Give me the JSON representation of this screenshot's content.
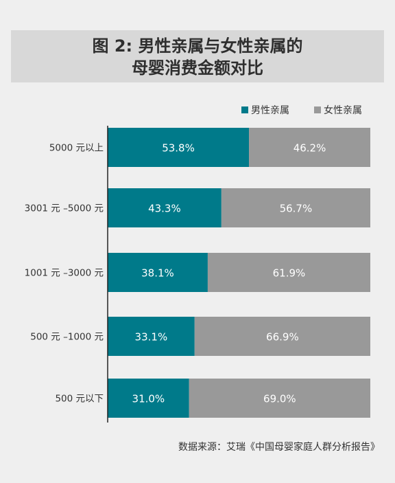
{
  "title_line_1": "图 2: 男性亲属与女性亲属的",
  "title_line_2": "母婴消费金额对比",
  "legend": [
    {
      "label": "男性亲属",
      "color": "#007a8a"
    },
    {
      "label": "女性亲属",
      "color": "#999999"
    }
  ],
  "source": "数据来源：艾瑞《中国母婴家庭人群分析报告》",
  "chart_data": {
    "type": "bar",
    "stacked": true,
    "orientation": "horizontal",
    "value_unit": "%",
    "categories": [
      "5000 元以上",
      "3001 元 –5000 元",
      "1001 元 –3000 元",
      "500 元 –1000 元",
      "500 元以下"
    ],
    "series": [
      {
        "name": "男性亲属",
        "color": "#007a8a",
        "values": [
          53.8,
          43.3,
          38.1,
          33.1,
          31.0
        ],
        "labels": [
          "53.8%",
          "43.3%",
          "38.1%",
          "33.1%",
          "31.0%"
        ]
      },
      {
        "name": "女性亲属",
        "color": "#999999",
        "values": [
          46.2,
          56.7,
          61.9,
          66.9,
          69.0
        ],
        "labels": [
          "46.2%",
          "56.7%",
          "61.9%",
          "66.9%",
          "69.0%"
        ]
      }
    ],
    "xlim": [
      0,
      100
    ],
    "grid": false,
    "legend_position": "top-right"
  }
}
